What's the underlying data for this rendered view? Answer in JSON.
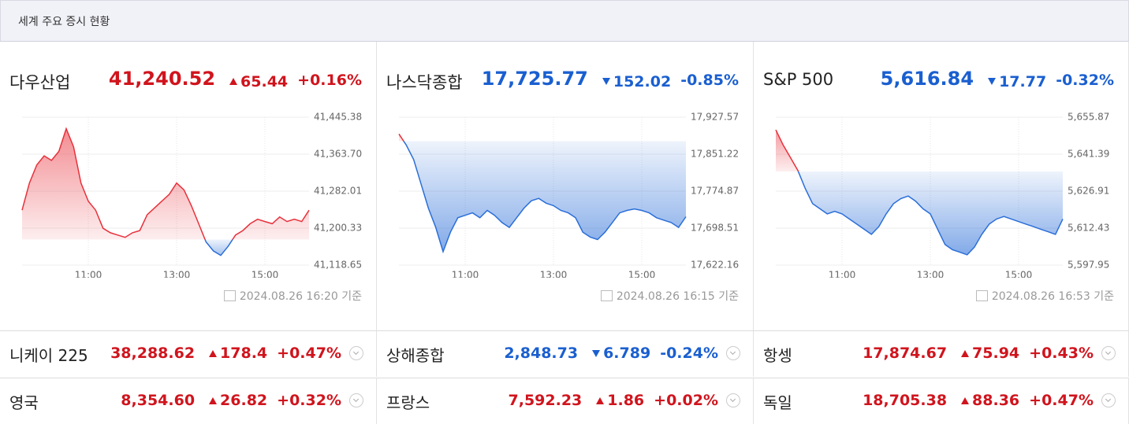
{
  "header": {
    "title": "세계 주요 증시 현황"
  },
  "indices": [
    {
      "name": "다우산업",
      "price": "41,240.52",
      "change": "65.44",
      "change_pct": "+0.16%",
      "direction": "up",
      "updated": "2024.08.26 16:20 기준"
    },
    {
      "name": "나스닥종합",
      "price": "17,725.77",
      "change": "152.02",
      "change_pct": "-0.85%",
      "direction": "down",
      "updated": "2024.08.26 16:15 기준"
    },
    {
      "name": "S&P 500",
      "price": "5,616.84",
      "change": "17.77",
      "change_pct": "-0.32%",
      "direction": "down",
      "updated": "2024.08.26 16:53 기준"
    }
  ],
  "chart_data": [
    {
      "type": "line",
      "up_color": "#e8303a",
      "down_color": "#2a6ed8",
      "grid": true,
      "baseline": 41175.08,
      "x": [
        "09:30",
        "09:40",
        "09:50",
        "10:00",
        "10:10",
        "10:20",
        "10:30",
        "10:40",
        "10:50",
        "11:00",
        "11:10",
        "11:20",
        "11:30",
        "11:40",
        "11:50",
        "12:00",
        "12:10",
        "12:20",
        "12:30",
        "12:40",
        "12:50",
        "13:00",
        "13:10",
        "13:20",
        "13:30",
        "13:40",
        "13:50",
        "14:00",
        "14:10",
        "14:20",
        "14:30",
        "14:40",
        "14:50",
        "15:00",
        "15:10",
        "15:20",
        "15:30",
        "15:40",
        "15:50",
        "16:00"
      ],
      "values": [
        41240,
        41300,
        41340,
        41360,
        41350,
        41370,
        41420,
        41380,
        41300,
        41260,
        41240,
        41200,
        41190,
        41185,
        41180,
        41190,
        41195,
        41230,
        41245,
        41260,
        41275,
        41300,
        41285,
        41250,
        41210,
        41170,
        41150,
        41140,
        41160,
        41185,
        41195,
        41210,
        41220,
        41215,
        41210,
        41225,
        41215,
        41220,
        41215,
        41240
      ],
      "xlim": [
        "09:30",
        "16:00"
      ],
      "xticks": [
        "11:00",
        "13:00",
        "15:00"
      ],
      "ylim": [
        41118.65,
        41445.38
      ],
      "yticks": [
        {
          "value": 41445.38,
          "label": "41,445.38"
        },
        {
          "value": 41363.7,
          "label": "41,363.70"
        },
        {
          "value": 41282.01,
          "label": "41,282.01"
        },
        {
          "value": 41200.33,
          "label": "41,200.33"
        },
        {
          "value": 41118.65,
          "label": "41,118.65"
        }
      ]
    },
    {
      "type": "line",
      "up_color": "#e8303a",
      "down_color": "#2a6ed8",
      "grid": true,
      "baseline": 17877.79,
      "x": [
        "09:30",
        "09:40",
        "09:50",
        "10:00",
        "10:10",
        "10:20",
        "10:30",
        "10:40",
        "10:50",
        "11:00",
        "11:10",
        "11:20",
        "11:30",
        "11:40",
        "11:50",
        "12:00",
        "12:10",
        "12:20",
        "12:30",
        "12:40",
        "12:50",
        "13:00",
        "13:10",
        "13:20",
        "13:30",
        "13:40",
        "13:50",
        "14:00",
        "14:10",
        "14:20",
        "14:30",
        "14:40",
        "14:50",
        "15:00",
        "15:10",
        "15:20",
        "15:30",
        "15:40",
        "15:50",
        "16:00"
      ],
      "values": [
        17893,
        17870,
        17840,
        17790,
        17740,
        17700,
        17650,
        17690,
        17720,
        17725,
        17730,
        17720,
        17735,
        17725,
        17710,
        17700,
        17720,
        17740,
        17755,
        17760,
        17750,
        17745,
        17735,
        17730,
        17720,
        17690,
        17680,
        17675,
        17690,
        17710,
        17730,
        17735,
        17738,
        17735,
        17730,
        17720,
        17715,
        17710,
        17700,
        17722
      ],
      "xlim": [
        "09:30",
        "16:00"
      ],
      "xticks": [
        "11:00",
        "13:00",
        "15:00"
      ],
      "ylim": [
        17622.16,
        17927.57
      ],
      "yticks": [
        {
          "value": 17927.57,
          "label": "17,927.57"
        },
        {
          "value": 17851.22,
          "label": "17,851.22"
        },
        {
          "value": 17774.87,
          "label": "17,774.87"
        },
        {
          "value": 17698.51,
          "label": "17,698.51"
        },
        {
          "value": 17622.16,
          "label": "17,622.16"
        }
      ]
    },
    {
      "type": "line",
      "up_color": "#e8303a",
      "down_color": "#2a6ed8",
      "grid": true,
      "baseline": 5634.61,
      "x": [
        "09:30",
        "09:40",
        "09:50",
        "10:00",
        "10:10",
        "10:20",
        "10:30",
        "10:40",
        "10:50",
        "11:00",
        "11:10",
        "11:20",
        "11:30",
        "11:40",
        "11:50",
        "12:00",
        "12:10",
        "12:20",
        "12:30",
        "12:40",
        "12:50",
        "13:00",
        "13:10",
        "13:20",
        "13:30",
        "13:40",
        "13:50",
        "14:00",
        "14:10",
        "14:20",
        "14:30",
        "14:40",
        "14:50",
        "15:00",
        "15:10",
        "15:20",
        "15:30",
        "15:40",
        "15:50",
        "16:00"
      ],
      "values": [
        5650.9,
        5645,
        5640,
        5635,
        5628,
        5622,
        5620,
        5618,
        5619,
        5618,
        5616,
        5614,
        5612,
        5610,
        5613,
        5618,
        5622,
        5624,
        5625,
        5623,
        5620,
        5618,
        5612,
        5606,
        5604,
        5603,
        5602,
        5605,
        5610,
        5614,
        5616,
        5617,
        5616,
        5615,
        5614,
        5613,
        5612,
        5611,
        5610,
        5616
      ],
      "xlim": [
        "09:30",
        "16:00"
      ],
      "xticks": [
        "11:00",
        "13:00",
        "15:00"
      ],
      "ylim": [
        5597.95,
        5655.87
      ],
      "yticks": [
        {
          "value": 5655.87,
          "label": "5,655.87"
        },
        {
          "value": 5641.39,
          "label": "5,641.39"
        },
        {
          "value": 5626.91,
          "label": "5,626.91"
        },
        {
          "value": 5612.43,
          "label": "5,612.43"
        },
        {
          "value": 5597.95,
          "label": "5,597.95"
        }
      ]
    }
  ],
  "markets": [
    {
      "name": "니케이 225",
      "price": "38,288.62",
      "change": "178.4",
      "change_pct": "+0.47%",
      "direction": "up"
    },
    {
      "name": "상해종합",
      "price": "2,848.73",
      "change": "6.789",
      "change_pct": "-0.24%",
      "direction": "down"
    },
    {
      "name": "항셍",
      "price": "17,874.67",
      "change": "75.94",
      "change_pct": "+0.43%",
      "direction": "up"
    },
    {
      "name": "영국",
      "price": "8,354.60",
      "change": "26.82",
      "change_pct": "+0.32%",
      "direction": "up"
    },
    {
      "name": "프랑스",
      "price": "7,592.23",
      "change": "1.86",
      "change_pct": "+0.02%",
      "direction": "up"
    },
    {
      "name": "독일",
      "price": "18,705.38",
      "change": "88.36",
      "change_pct": "+0.47%",
      "direction": "up"
    }
  ]
}
